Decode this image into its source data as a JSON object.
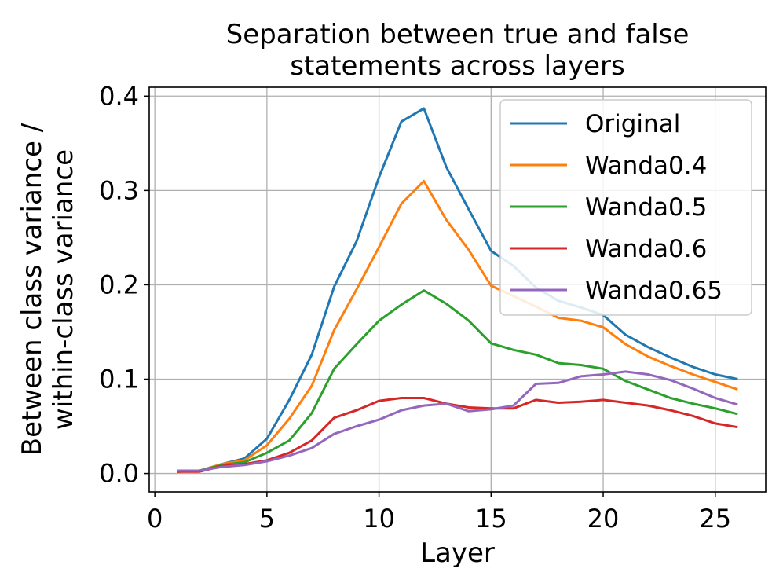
{
  "chart_data": {
    "type": "line",
    "title": "Separation between true and false\nstatements across layers",
    "xlabel": "Layer",
    "ylabel": "Between class variance /\nwithin-class variance",
    "xlim": [
      -0.25,
      27.25
    ],
    "ylim": [
      -0.0195,
      0.4094
    ],
    "xticks": [
      0,
      5,
      10,
      15,
      20,
      25
    ],
    "yticks": [
      0.0,
      0.1,
      0.2,
      0.3,
      0.4
    ],
    "xtick_labels": [
      "0",
      "5",
      "10",
      "15",
      "20",
      "25"
    ],
    "ytick_labels": [
      "0.0",
      "0.1",
      "0.2",
      "0.3",
      "0.4"
    ],
    "grid": true,
    "legend_position": "top-right",
    "x": [
      1,
      2,
      3,
      4,
      5,
      6,
      7,
      8,
      9,
      10,
      11,
      12,
      13,
      14,
      15,
      16,
      17,
      18,
      19,
      20,
      21,
      22,
      23,
      24,
      25,
      26
    ],
    "series": [
      {
        "name": "Original",
        "color": "#1f77b4",
        "values": [
          0.002,
          0.003,
          0.01,
          0.016,
          0.037,
          0.078,
          0.126,
          0.198,
          0.246,
          0.314,
          0.373,
          0.387,
          0.325,
          0.28,
          0.236,
          0.22,
          0.197,
          0.183,
          0.176,
          0.168,
          0.147,
          0.134,
          0.123,
          0.113,
          0.105,
          0.1
        ]
      },
      {
        "name": "Wanda0.4",
        "color": "#ff7f0e",
        "values": [
          0.002,
          0.003,
          0.01,
          0.014,
          0.03,
          0.058,
          0.093,
          0.152,
          0.195,
          0.24,
          0.286,
          0.31,
          0.269,
          0.237,
          0.199,
          0.188,
          0.177,
          0.165,
          0.162,
          0.155,
          0.137,
          0.124,
          0.114,
          0.105,
          0.097,
          0.089
        ]
      },
      {
        "name": "Wanda0.5",
        "color": "#2ca02c",
        "values": [
          0.002,
          0.003,
          0.009,
          0.012,
          0.022,
          0.035,
          0.064,
          0.111,
          0.137,
          0.162,
          0.179,
          0.194,
          0.18,
          0.162,
          0.138,
          0.131,
          0.126,
          0.117,
          0.115,
          0.111,
          0.098,
          0.089,
          0.08,
          0.074,
          0.069,
          0.063
        ]
      },
      {
        "name": "Wanda0.6",
        "color": "#d62728",
        "values": [
          0.002,
          0.002,
          0.008,
          0.01,
          0.014,
          0.022,
          0.035,
          0.059,
          0.067,
          0.077,
          0.08,
          0.08,
          0.074,
          0.07,
          0.069,
          0.069,
          0.078,
          0.075,
          0.076,
          0.078,
          0.075,
          0.072,
          0.067,
          0.061,
          0.053,
          0.049
        ]
      },
      {
        "name": "Wanda0.65",
        "color": "#9467bd",
        "values": [
          0.003,
          0.003,
          0.007,
          0.009,
          0.013,
          0.019,
          0.027,
          0.042,
          0.05,
          0.057,
          0.067,
          0.072,
          0.074,
          0.066,
          0.068,
          0.072,
          0.095,
          0.096,
          0.103,
          0.105,
          0.108,
          0.105,
          0.099,
          0.09,
          0.08,
          0.073
        ]
      }
    ]
  }
}
